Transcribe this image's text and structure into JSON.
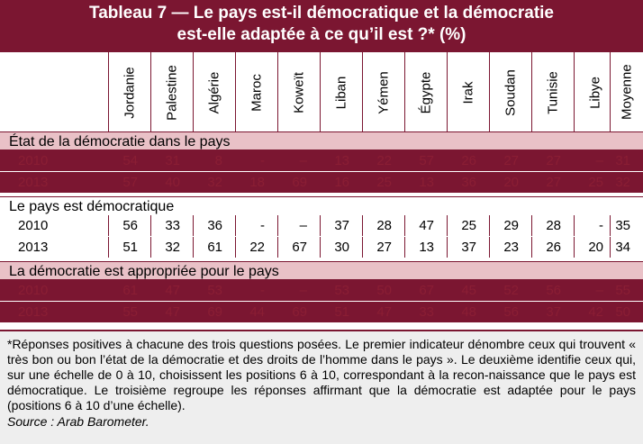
{
  "title": {
    "line1": "Tableau 7 — Le pays est-il démocratique  et la démocratie",
    "line2": "est-elle adaptée à ce qu’il est ?* (%)"
  },
  "columns": [
    "Jordanie",
    "Palestine",
    "Algérie",
    "Maroc",
    "Koweït",
    "Liban",
    "Yémen",
    "Égypte",
    "Irak",
    "Soudan",
    "Tunisie",
    "Libye",
    "Moyenne"
  ],
  "sections": [
    {
      "label": "État de la démocratie dans le pays",
      "rows": [
        {
          "year": "2010",
          "values": [
            "54",
            "31",
            "8",
            "-",
            "–",
            "13",
            "22",
            "57",
            "26",
            "27",
            "27",
            "–",
            "31"
          ]
        },
        {
          "year": "2013",
          "values": [
            "57",
            "40",
            "32",
            "18",
            "69",
            "16",
            "25",
            "13",
            "36",
            "20",
            "27",
            "25",
            "32"
          ]
        }
      ]
    },
    {
      "label": "Le pays est démocratique",
      "rows": [
        {
          "year": "2010",
          "values": [
            "56",
            "33",
            "36",
            "-",
            "–",
            "37",
            "28",
            "47",
            "25",
            "29",
            "28",
            "-",
            "35"
          ]
        },
        {
          "year": "2013",
          "values": [
            "51",
            "32",
            "61",
            "22",
            "67",
            "30",
            "27",
            "13",
            "37",
            "23",
            "26",
            "20",
            "34"
          ]
        }
      ]
    },
    {
      "label": "La démocratie  est appropriée  pour  le pays",
      "rows": [
        {
          "year": "2010",
          "values": [
            "61",
            "47",
            "53",
            "-",
            "–",
            "53",
            "50",
            "67",
            "45",
            "52",
            "56",
            "–",
            "55"
          ]
        },
        {
          "year": "2013",
          "values": [
            "55",
            "47",
            "69",
            "44",
            "69",
            "51",
            "47",
            "33",
            "48",
            "56",
            "37",
            "42",
            "50"
          ]
        }
      ]
    }
  ],
  "note": "*Réponses positives à chacune des trois questions posées. Le premier indicateur dénombre ceux qui trouvent « très bon ou bon l’état de la démocratie et des droits de l’homme dans le pays ». Le deuxième identifie ceux qui, sur une échelle de 0 à 10, choisissent les positions 6 à 10, correspondant à la recon-naissance que le pays est démocratique. Le troisième regroupe les réponses affirmant que la démocratie est adaptée pour le pays (positions 6 à 10 d’une échelle).",
  "source": "Source : Arab Barometer.",
  "colors": {
    "primary": "#7b1631",
    "section_band": "#e9c1c7",
    "note_bg": "#eeeeee"
  }
}
